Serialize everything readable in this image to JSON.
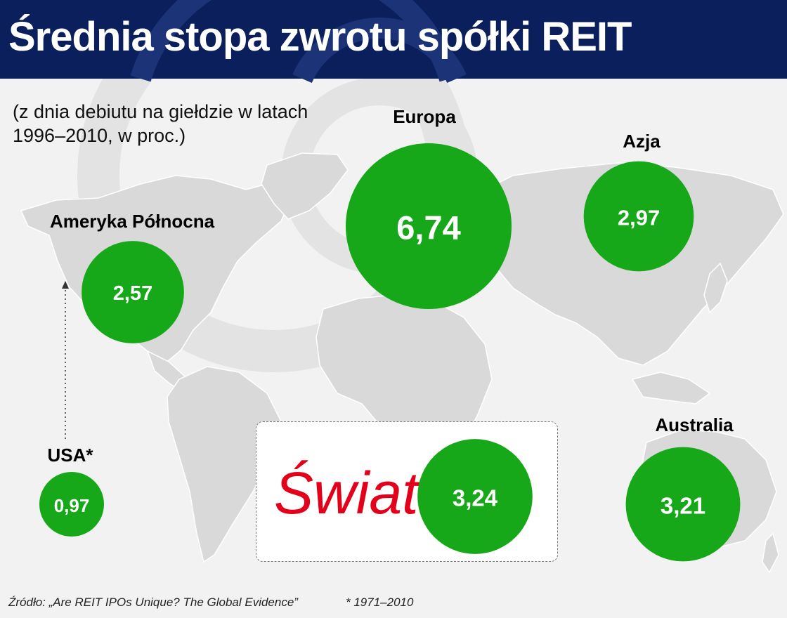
{
  "header": {
    "title": "Średnia stopa zwrotu spółki REIT",
    "subtitle_line1": "(z dnia debiutu na giełdzie w latach",
    "subtitle_line2": "1996–2010, w proc.)"
  },
  "colors": {
    "header_bg": "#0b1f5c",
    "bubble": "#17a81a",
    "map_land": "#d9d9d9",
    "background": "#f2f2f2",
    "world_label": "#e3001b"
  },
  "world": {
    "label": "Świat",
    "value_text": "3,24",
    "value": 3.24
  },
  "footer": {
    "source": "Źródło: „Are REIT IPOs Unique? The Global Evidence”",
    "note": "* 1971–2010"
  },
  "chart_data": {
    "type": "bubble-map",
    "unit": "proc.",
    "regions": [
      {
        "key": "europe",
        "label": "Europa",
        "value": 6.74,
        "value_text": "6,74"
      },
      {
        "key": "asia",
        "label": "Azja",
        "value": 2.97,
        "value_text": "2,97"
      },
      {
        "key": "north_america",
        "label": "Ameryka Północna",
        "value": 2.57,
        "value_text": "2,57"
      },
      {
        "key": "usa",
        "label": "USA*",
        "value": 0.97,
        "value_text": "0,97"
      },
      {
        "key": "australia",
        "label": "Australia",
        "value": 3.21,
        "value_text": "3,21"
      },
      {
        "key": "world",
        "label": "Świat",
        "value": 3.24,
        "value_text": "3,24"
      }
    ]
  }
}
